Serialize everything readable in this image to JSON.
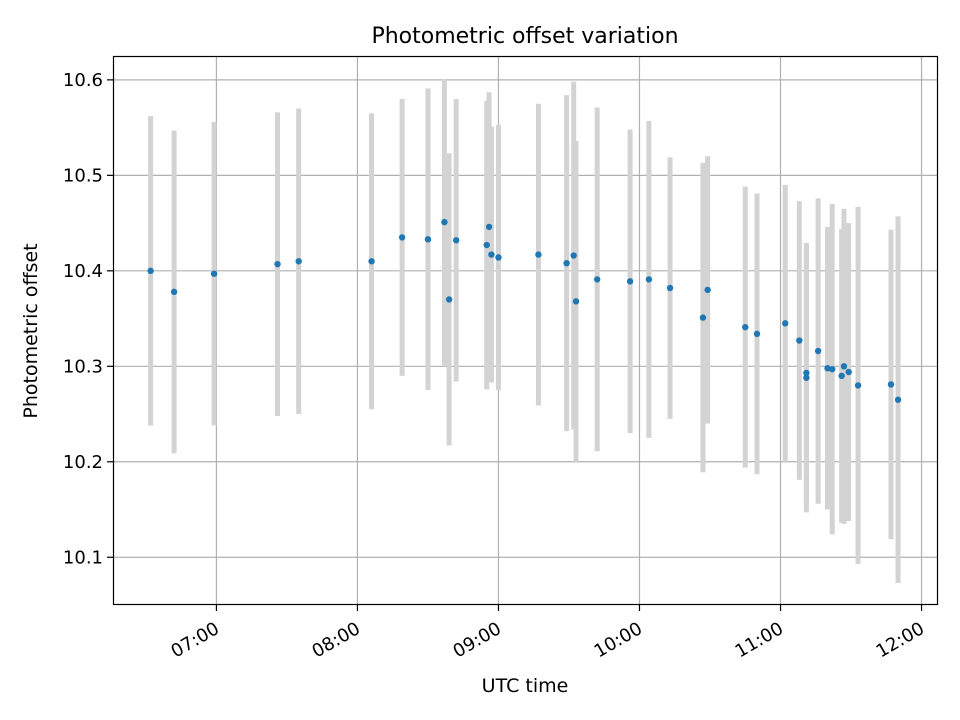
{
  "chart_data": {
    "type": "scatter",
    "title": "Photometric offset variation",
    "xlabel": "UTC time",
    "ylabel": "Photometric offset",
    "x_ticks": [
      "07:00",
      "08:00",
      "09:00",
      "10:00",
      "11:00",
      "12:00"
    ],
    "y_ticks": [
      "10.1",
      "10.2",
      "10.3",
      "10.4",
      "10.5",
      "10.6"
    ],
    "xlim": [
      "06:16",
      "12:07"
    ],
    "ylim": [
      10.05,
      10.625
    ],
    "grid": true,
    "marker_color": "#1f77b4",
    "errorbar_color": "#d3d3d3",
    "series": [
      {
        "points": [
          {
            "x": "06:32",
            "y": 10.4,
            "err": 0.162
          },
          {
            "x": "06:42",
            "y": 10.378,
            "err": 0.169
          },
          {
            "x": "06:59",
            "y": 10.397,
            "err": 0.159
          },
          {
            "x": "07:26",
            "y": 10.407,
            "err": 0.159
          },
          {
            "x": "07:35",
            "y": 10.41,
            "err": 0.16
          },
          {
            "x": "08:06",
            "y": 10.41,
            "err": 0.155
          },
          {
            "x": "08:19",
            "y": 10.435,
            "err": 0.145
          },
          {
            "x": "08:30",
            "y": 10.433,
            "err": 0.158
          },
          {
            "x": "08:37",
            "y": 10.451,
            "err": 0.15
          },
          {
            "x": "08:39",
            "y": 10.37,
            "err": 0.153
          },
          {
            "x": "08:42",
            "y": 10.432,
            "err": 0.148
          },
          {
            "x": "08:55",
            "y": 10.427,
            "err": 0.151
          },
          {
            "x": "08:56",
            "y": 10.446,
            "err": 0.141
          },
          {
            "x": "08:57",
            "y": 10.417,
            "err": 0.134
          },
          {
            "x": "09:00",
            "y": 10.414,
            "err": 0.139
          },
          {
            "x": "09:17",
            "y": 10.417,
            "err": 0.158
          },
          {
            "x": "09:29",
            "y": 10.408,
            "err": 0.176
          },
          {
            "x": "09:32",
            "y": 10.416,
            "err": 0.182
          },
          {
            "x": "09:33",
            "y": 10.368,
            "err": 0.168
          },
          {
            "x": "09:42",
            "y": 10.391,
            "err": 0.18
          },
          {
            "x": "09:56",
            "y": 10.389,
            "err": 0.159
          },
          {
            "x": "10:04",
            "y": 10.391,
            "err": 0.166
          },
          {
            "x": "10:13",
            "y": 10.382,
            "err": 0.137
          },
          {
            "x": "10:27",
            "y": 10.351,
            "err": 0.162
          },
          {
            "x": "10:29",
            "y": 10.38,
            "err": 0.14
          },
          {
            "x": "10:45",
            "y": 10.341,
            "err": 0.147
          },
          {
            "x": "10:50",
            "y": 10.334,
            "err": 0.147
          },
          {
            "x": "11:02",
            "y": 10.345,
            "err": 0.145
          },
          {
            "x": "11:08",
            "y": 10.327,
            "err": 0.146
          },
          {
            "x": "11:11",
            "y": 10.293,
            "err": 0.136
          },
          {
            "x": "11:11",
            "y": 10.288,
            "err": 0.141
          },
          {
            "x": "11:16",
            "y": 10.316,
            "err": 0.16
          },
          {
            "x": "11:20",
            "y": 10.298,
            "err": 0.148
          },
          {
            "x": "11:22",
            "y": 10.297,
            "err": 0.173
          },
          {
            "x": "11:26",
            "y": 10.29,
            "err": 0.154
          },
          {
            "x": "11:27",
            "y": 10.3,
            "err": 0.165
          },
          {
            "x": "11:29",
            "y": 10.294,
            "err": 0.156
          },
          {
            "x": "11:33",
            "y": 10.28,
            "err": 0.187
          },
          {
            "x": "11:47",
            "y": 10.281,
            "err": 0.162
          },
          {
            "x": "11:50",
            "y": 10.265,
            "err": 0.192
          }
        ]
      }
    ]
  }
}
